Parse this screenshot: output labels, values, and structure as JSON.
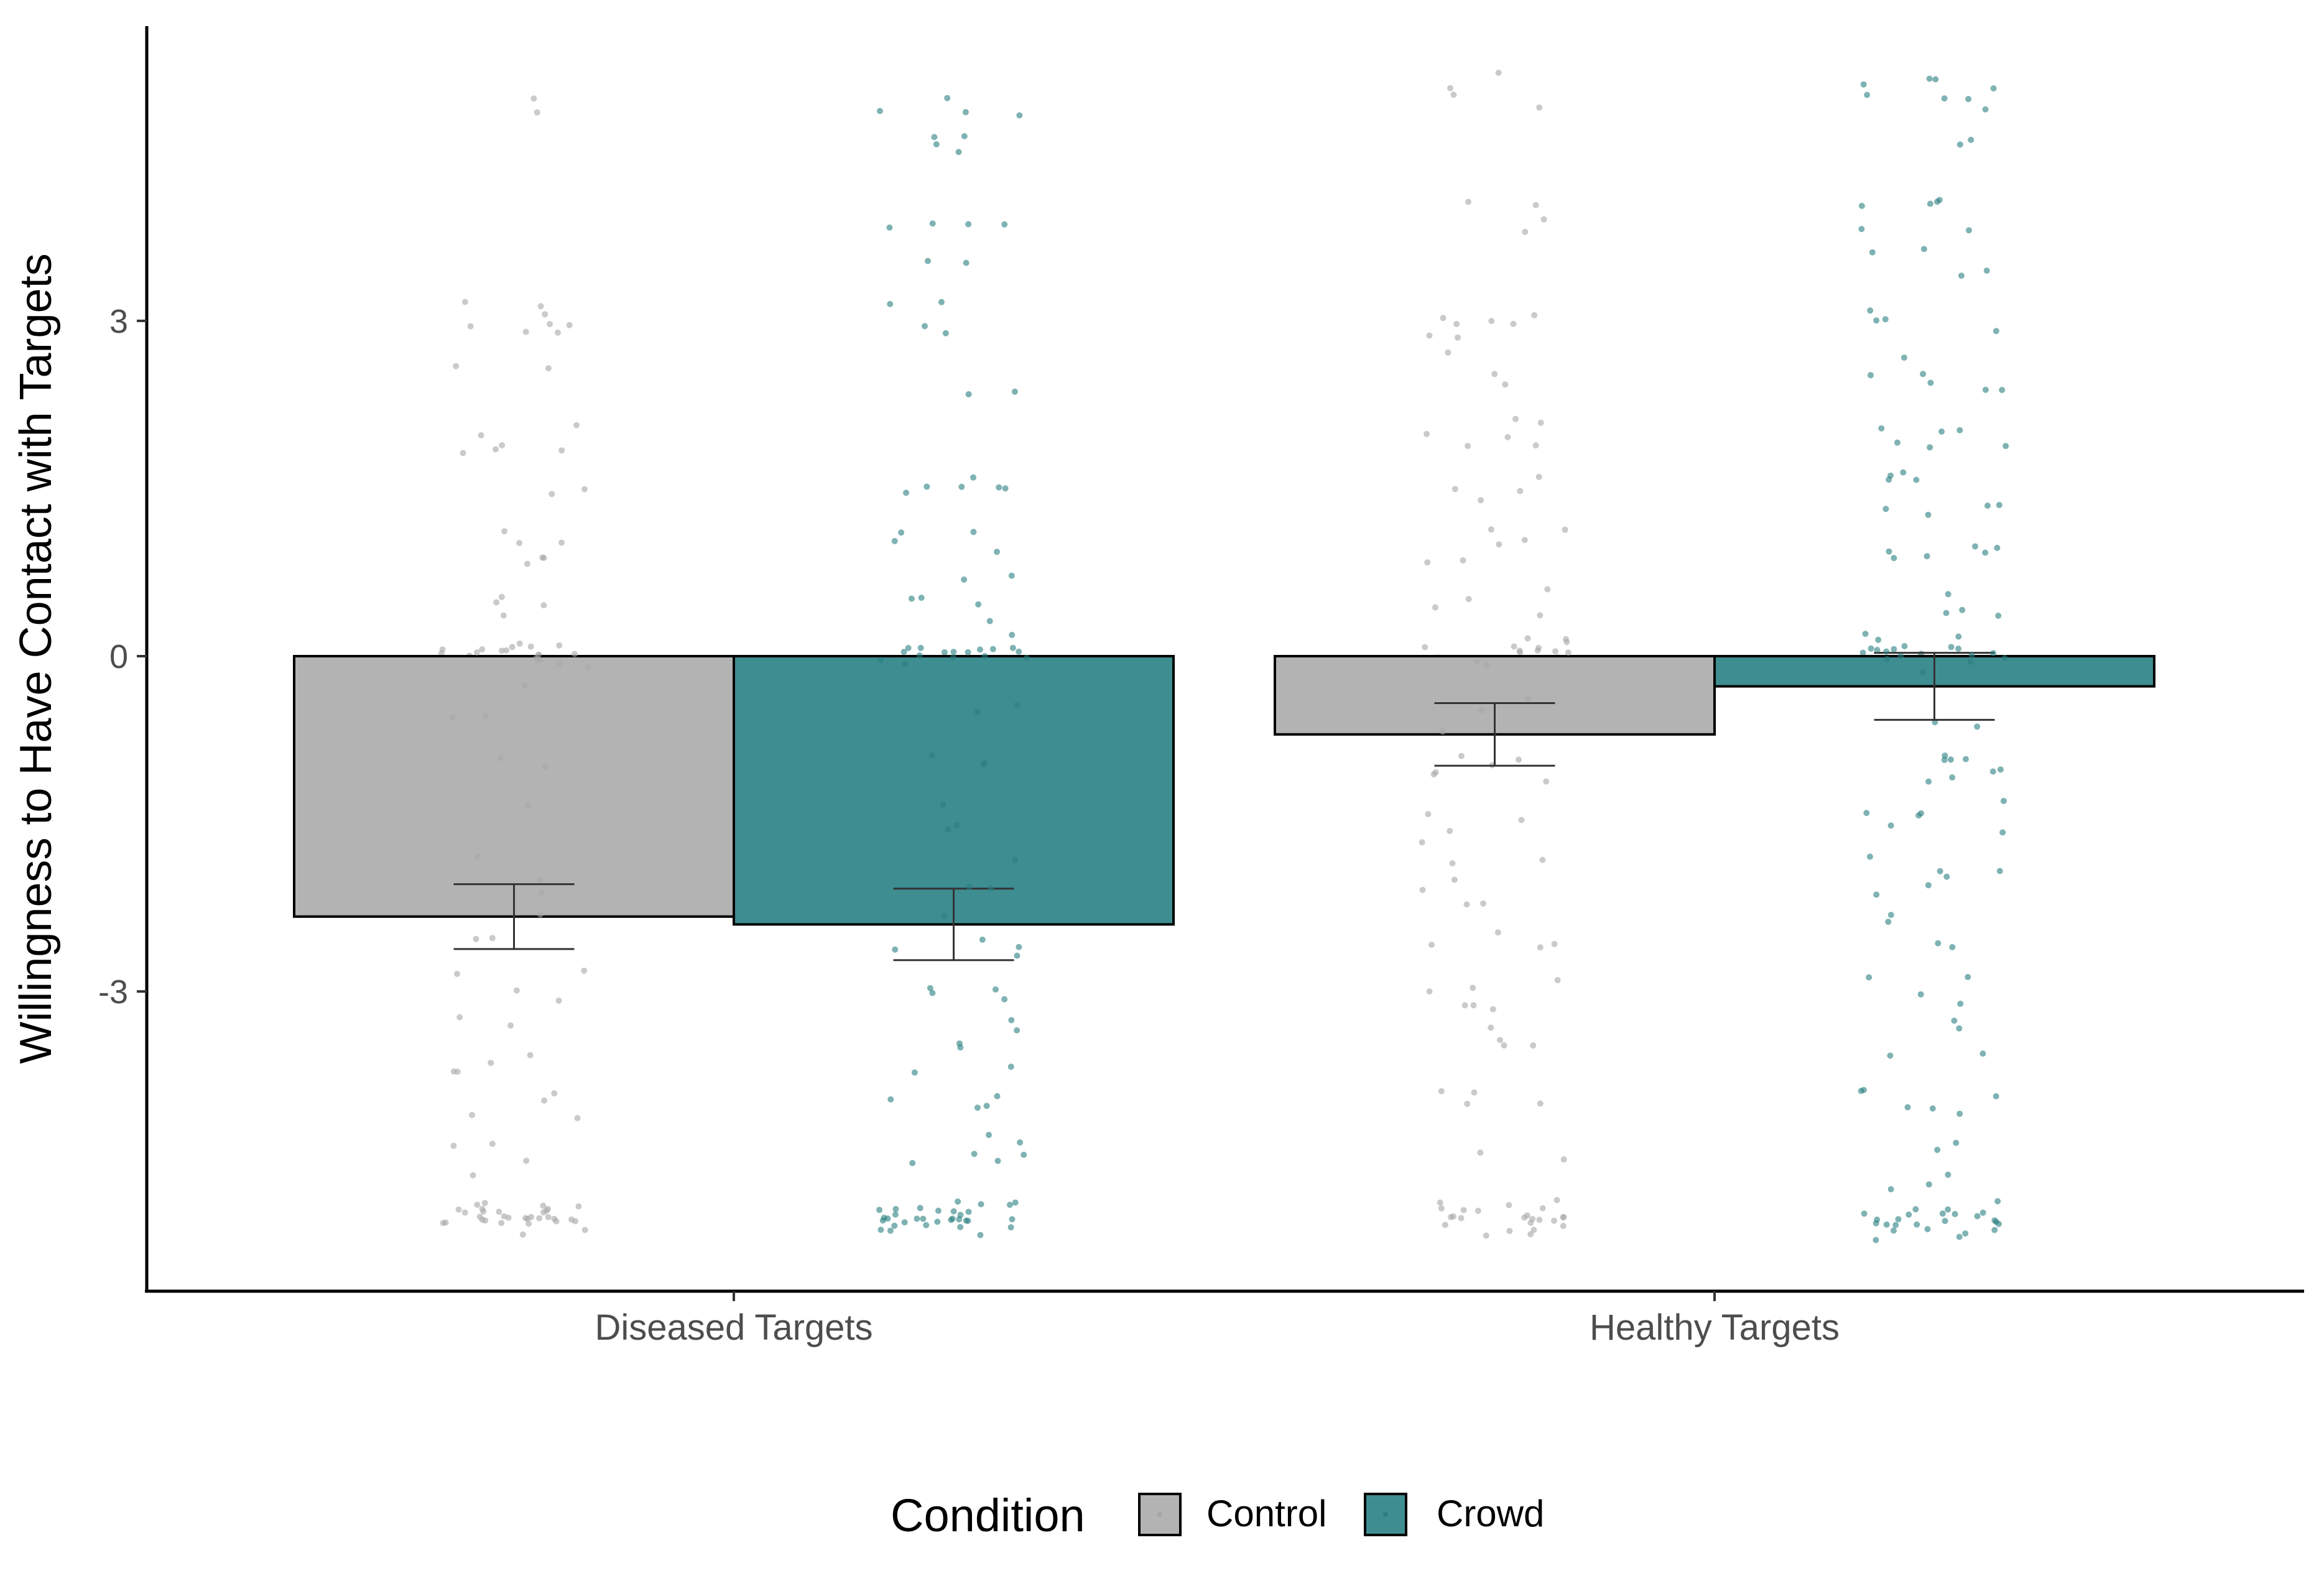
{
  "colors": {
    "control": "#b3b3b3",
    "crowd": "#3e8d91",
    "control_points": "#a6a6a6",
    "crowd_points": "#2a7f80"
  },
  "legend": {
    "title": "Condition",
    "placement": "bottom",
    "items": [
      {
        "label": "Control",
        "color_key": "control"
      },
      {
        "label": "Crowd",
        "color_key": "crowd"
      }
    ]
  },
  "chart_data": {
    "type": "bar",
    "title": "",
    "xlabel": "",
    "ylabel": "Willingness to Have Contact with Targets",
    "categories": [
      "Diseased Targets",
      "Healthy Targets"
    ],
    "ylim": [
      -5.6,
      5.7
    ],
    "yticks": [
      -3,
      0,
      3
    ],
    "ytick_labels": [
      "-3",
      "0",
      "3"
    ],
    "grid": false,
    "series": [
      {
        "name": "Control",
        "values": [
          -2.33,
          -0.7
        ],
        "error_low": [
          -2.62,
          -0.98
        ],
        "error_high": [
          -2.04,
          -0.42
        ],
        "points": [
          {
            "category": 0,
            "y_levels": [
              4.9,
              3.1,
              3.0,
              2.95,
              2.9,
              2.6,
              2.0,
              1.9,
              1.85,
              1.5,
              1.05,
              0.95,
              0.9,
              0.5,
              0.45,
              0.1,
              0.05,
              0.0,
              -0.1,
              -0.3,
              -0.5,
              -0.6,
              -0.9,
              -1.05,
              -1.4,
              -1.8,
              -2.0,
              -2.05,
              -2.3,
              -2.5,
              -2.85,
              -3.05,
              -3.3,
              -3.55,
              -3.65,
              -3.95,
              -4.1,
              -4.45,
              -4.6,
              -4.95,
              -5.0,
              -5.05,
              -5.1
            ]
          },
          {
            "category": 1,
            "y_levels": [
              5.15,
              4.95,
              4.0,
              3.85,
              3.1,
              3.0,
              2.9,
              2.8,
              2.5,
              2.1,
              1.95,
              1.9,
              1.55,
              1.4,
              1.1,
              1.0,
              0.9,
              0.6,
              0.35,
              0.1,
              0.05,
              0.0,
              -0.3,
              -0.55,
              -0.6,
              -0.85,
              -1.0,
              -1.05,
              -1.45,
              -1.6,
              -1.85,
              -2.05,
              -2.2,
              -2.5,
              -2.55,
              -2.95,
              -3.05,
              -3.15,
              -3.35,
              -3.55,
              -3.9,
              -4.0,
              -4.5,
              -4.95,
              -5.0,
              -5.1
            ]
          }
        ]
      },
      {
        "name": "Crowd",
        "values": [
          -2.4,
          -0.27
        ],
        "error_low": [
          -2.72,
          -0.57
        ],
        "error_high": [
          -2.08,
          0.03
        ],
        "points": [
          {
            "category": 0,
            "y_levels": [
              4.95,
              4.9,
              4.65,
              4.6,
              3.95,
              3.9,
              3.45,
              3.1,
              2.9,
              2.4,
              1.6,
              1.55,
              1.45,
              1.05,
              1.0,
              0.7,
              0.45,
              0.4,
              0.1,
              0.05,
              0.0,
              -0.1,
              -0.35,
              -0.55,
              -0.85,
              -1.0,
              -1.05,
              -1.4,
              -1.45,
              -1.55,
              -1.9,
              -2.0,
              -2.05,
              -2.3,
              -2.6,
              -2.65,
              -2.95,
              -3.0,
              -3.3,
              -3.55,
              -3.65,
              -3.9,
              -4.0,
              -4.3,
              -4.45,
              -4.5,
              -4.95,
              -5.0,
              -5.05,
              -5.1
            ]
          },
          {
            "category": 1,
            "y_levels": [
              5.15,
              5.1,
              5.05,
              4.95,
              4.55,
              4.15,
              4.1,
              3.9,
              3.6,
              3.45,
              3.05,
              2.95,
              2.6,
              2.5,
              2.4,
              2.05,
              1.95,
              1.9,
              1.6,
              1.55,
              1.4,
              1.3,
              1.0,
              0.9,
              0.85,
              0.5,
              0.4,
              0.15,
              0.1,
              0.05,
              0.0,
              -0.1,
              -0.55,
              -0.85,
              -0.95,
              -1.0,
              -1.1,
              -1.35,
              -1.45,
              -1.6,
              -1.85,
              -1.95,
              -2.05,
              -2.4,
              -2.6,
              -2.9,
              -3.1,
              -3.25,
              -3.55,
              -3.9,
              -4.0,
              -4.1,
              -4.4,
              -4.65,
              -4.85,
              -5.0,
              -5.05,
              -5.15
            ]
          }
        ]
      }
    ]
  }
}
